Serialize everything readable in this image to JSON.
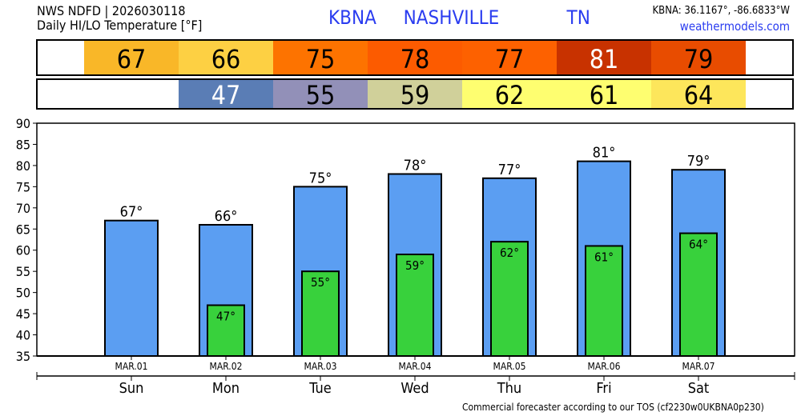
{
  "header": {
    "line1": "NWS NDFD | 2026030118",
    "line2": "Daily HI/LO Temperature [°F]",
    "title": "KBNA  NASHVILLE     TN",
    "coords": "KBNA: 36.1167°, -86.6833°W",
    "site": "weathermodels.com"
  },
  "footer": "Commercial forecaster according to our TOS (cf2230w0UKBNA0p230)",
  "chart_data": {
    "type": "bar",
    "dates": [
      "MAR.01",
      "MAR.02",
      "MAR.03",
      "MAR.04",
      "MAR.05",
      "MAR.06",
      "MAR.07"
    ],
    "days": [
      "Sun",
      "Mon",
      "Tue",
      "Wed",
      "Thu",
      "Fri",
      "Sat"
    ],
    "series": [
      {
        "name": "HI",
        "values": [
          67,
          66,
          75,
          78,
          77,
          81,
          79
        ],
        "color": "#5b9ef2",
        "cell_colors": [
          "#f9b728",
          "#fdd043",
          "#fd7300",
          "#fc5b00",
          "#fd6100",
          "#c83200",
          "#e84c00"
        ],
        "text_colors": [
          "#000",
          "#000",
          "#000",
          "#000",
          "#000",
          "#fff",
          "#000"
        ]
      },
      {
        "name": "LO",
        "values": [
          null,
          47,
          55,
          59,
          62,
          61,
          64
        ],
        "color": "#38d13c",
        "cell_colors": [
          null,
          "#5a7db5",
          "#9290b8",
          "#d0d09a",
          "#fefe70",
          "#fefe70",
          "#fde65b"
        ],
        "text_colors": [
          null,
          "#fff",
          "#000",
          "#000",
          "#000",
          "#000",
          "#000"
        ]
      }
    ],
    "ylim": [
      35,
      90
    ],
    "yticks": [
      35,
      40,
      45,
      50,
      55,
      60,
      65,
      70,
      75,
      80,
      85,
      90
    ],
    "unit": "°"
  }
}
